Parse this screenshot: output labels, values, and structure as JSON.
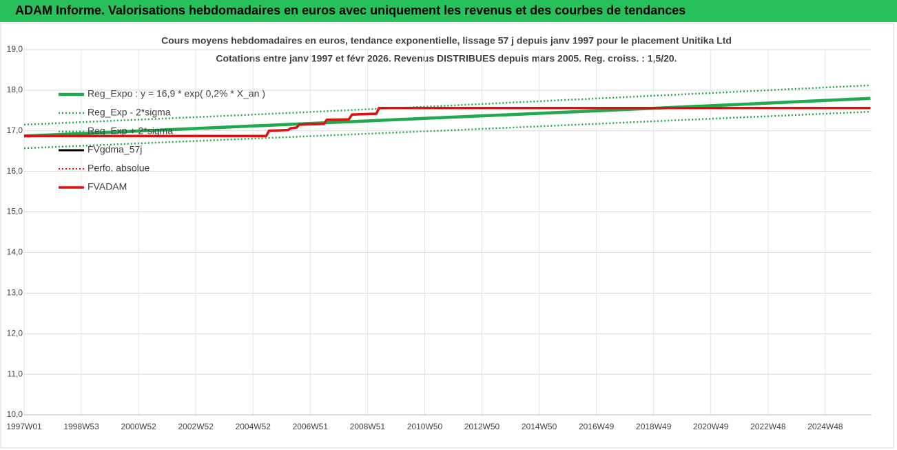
{
  "header": {
    "title": "ADAM Informe. Valorisations hebdomadaires en euros avec uniquement les revenus et des courbes de tendances"
  },
  "chart_data": {
    "type": "line",
    "title": "Cours moyens hebdomadaires en euros, tendance exponentielle, lissage 57 j depuis janv 1997 pour le placement Unitika Ltd",
    "subtitle": "Cotations entre janv 1997 et févr 2026. Revenus DISTRIBUES depuis mars 2005. Reg. croiss. : 1,5/20.",
    "xlim": [
      0,
      1540
    ],
    "xticks": [
      {
        "value": 0,
        "label": "1997W01"
      },
      {
        "value": 104,
        "label": "1998W53"
      },
      {
        "value": 208,
        "label": "2000W52"
      },
      {
        "value": 312,
        "label": "2002W52"
      },
      {
        "value": 416,
        "label": "2004W52"
      },
      {
        "value": 520,
        "label": "2006W51"
      },
      {
        "value": 624,
        "label": "2008W51"
      },
      {
        "value": 728,
        "label": "2010W50"
      },
      {
        "value": 832,
        "label": "2012W50"
      },
      {
        "value": 936,
        "label": "2014W50"
      },
      {
        "value": 1040,
        "label": "2016W49"
      },
      {
        "value": 1144,
        "label": "2018W49"
      },
      {
        "value": 1248,
        "label": "2020W49"
      },
      {
        "value": 1352,
        "label": "2022W48"
      },
      {
        "value": 1456,
        "label": "2024W48"
      }
    ],
    "ylim": [
      10,
      19
    ],
    "yticks": [
      {
        "value": 10,
        "label": "10,0"
      },
      {
        "value": 11,
        "label": "11,0"
      },
      {
        "value": 12,
        "label": "12,0"
      },
      {
        "value": 13,
        "label": "13,0"
      },
      {
        "value": 14,
        "label": "14,0"
      },
      {
        "value": 15,
        "label": "15,0"
      },
      {
        "value": 16,
        "label": "16,0"
      },
      {
        "value": 17,
        "label": "17,0"
      },
      {
        "value": 18,
        "label": "18,0"
      },
      {
        "value": 19,
        "label": "19,0"
      }
    ],
    "grid": true,
    "series": [
      {
        "name": "Reg_Expo : y = 16,9 * exp( 0,2% *  X_an )",
        "color": "#1faa4f",
        "dash": "solid",
        "width": 4.5,
        "x": [
          0,
          385,
          770,
          1155,
          1538
        ],
        "values": [
          16.87,
          17.1,
          17.33,
          17.56,
          17.8
        ]
      },
      {
        "name": "Reg_Exp - 2*sigma",
        "color": "#1faa4f",
        "dash": "dotted",
        "width": 2.5,
        "x": [
          0,
          385,
          770,
          1155,
          1538
        ],
        "values": [
          16.57,
          16.79,
          17.01,
          17.24,
          17.47
        ]
      },
      {
        "name": "Reg_Exp + 2*sigma",
        "color": "#1faa4f",
        "dash": "dotted",
        "width": 2.5,
        "x": [
          0,
          385,
          770,
          1155,
          1538
        ],
        "values": [
          17.15,
          17.38,
          17.62,
          17.87,
          18.12
        ]
      },
      {
        "name": "FVgdma_57j",
        "color": "#000000",
        "dash": "solid",
        "width": 3,
        "x": [
          0,
          440,
          445,
          480,
          484,
          495,
          500,
          545,
          550,
          590,
          596,
          640,
          645,
          1538
        ],
        "values": [
          16.87,
          16.87,
          17.0,
          17.02,
          17.06,
          17.08,
          17.15,
          17.17,
          17.27,
          17.28,
          17.4,
          17.42,
          17.56,
          17.56
        ]
      },
      {
        "name": "Perfo. absolue",
        "color": "#e01010",
        "dash": "dotted",
        "width": 2,
        "x": [
          0,
          440,
          445,
          480,
          484,
          495,
          500,
          545,
          550,
          590,
          596,
          640,
          645,
          1538
        ],
        "values": [
          16.87,
          16.87,
          17.0,
          17.02,
          17.06,
          17.08,
          17.15,
          17.17,
          17.27,
          17.28,
          17.4,
          17.42,
          17.56,
          17.56
        ]
      },
      {
        "name": "FVADAM",
        "color": "#e01010",
        "dash": "solid",
        "width": 3.5,
        "x": [
          0,
          440,
          445,
          480,
          484,
          495,
          500,
          545,
          550,
          590,
          596,
          640,
          645,
          1538
        ],
        "values": [
          16.87,
          16.87,
          17.0,
          17.02,
          17.06,
          17.08,
          17.15,
          17.17,
          17.27,
          17.28,
          17.4,
          17.42,
          17.56,
          17.56
        ]
      }
    ]
  }
}
